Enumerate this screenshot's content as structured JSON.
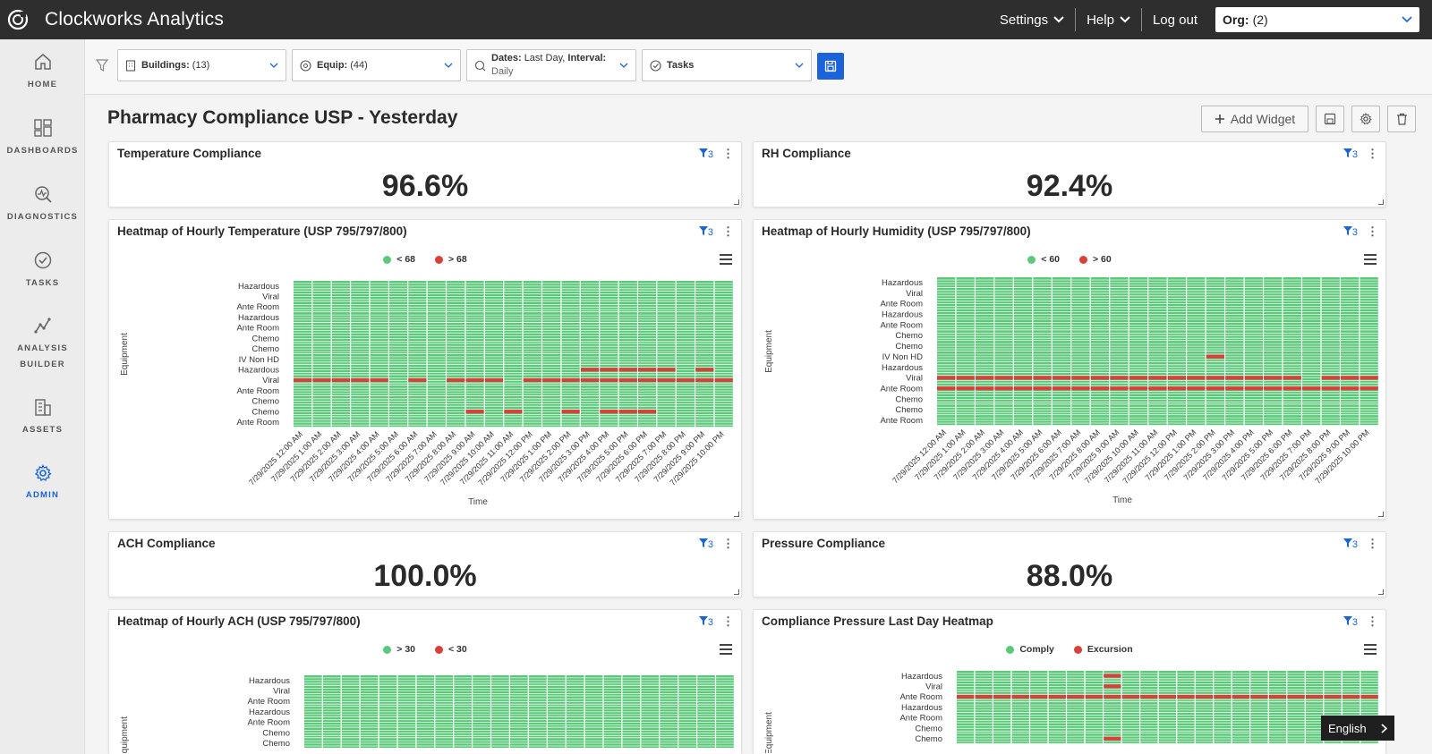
{
  "app": {
    "title": "Clockworks Analytics"
  },
  "topnav": {
    "settings": "Settings",
    "help": "Help",
    "logout": "Log out",
    "org_label": "Org:",
    "org_value": "(2)"
  },
  "sidebar": {
    "items": [
      {
        "label": "HOME",
        "icon": "home-icon"
      },
      {
        "label": "DASHBOARDS",
        "icon": "dashboards-icon"
      },
      {
        "label": "DIAGNOSTICS",
        "icon": "diagnostics-icon"
      },
      {
        "label": "TASKS",
        "icon": "tasks-icon"
      },
      {
        "label": "ANALYSIS BUILDER",
        "icon": "analysis-icon"
      },
      {
        "label": "ASSETS",
        "icon": "assets-icon"
      },
      {
        "label": "ADMIN",
        "icon": "gear-icon",
        "active": true
      }
    ]
  },
  "filters": {
    "buildings_label": "Buildings:",
    "buildings_value": "(13)",
    "equip_label": "Equip:",
    "equip_value": "(44)",
    "dates_label": "Dates:",
    "dates_value": "Last Day,",
    "interval_label": "Interval:",
    "interval_value": "Daily",
    "tasks_label": "Tasks"
  },
  "page": {
    "title": "Pharmacy Compliance USP - Yesterday",
    "add_widget": "Add Widget"
  },
  "widgets": {
    "temp": {
      "title": "Temperature Compliance",
      "value": "96.6%",
      "filter_count": "3"
    },
    "rh": {
      "title": "RH Compliance",
      "value": "92.4%",
      "filter_count": "3"
    },
    "heat_temp": {
      "title": "Heatmap of Hourly Temperature (USP 795/797/800)",
      "filter_count": "3",
      "legend": [
        "< 68",
        "> 68"
      ]
    },
    "heat_hum": {
      "title": "Heatmap of Hourly Humidity (USP 795/797/800)",
      "filter_count": "3",
      "legend": [
        "< 60",
        "> 60"
      ]
    },
    "ach": {
      "title": "ACH Compliance",
      "value": "100.0%",
      "filter_count": "3"
    },
    "pressure": {
      "title": "Pressure Compliance",
      "value": "88.0%",
      "filter_count": "3"
    },
    "heat_ach": {
      "title": "Heatmap of Hourly ACH (USP 795/797/800)",
      "filter_count": "3",
      "legend": [
        "> 30",
        "< 30"
      ]
    },
    "heat_press": {
      "title": "Compliance Pressure Last Day Heatmap",
      "filter_count": "3",
      "legend": [
        "Comply",
        "Excursion"
      ]
    }
  },
  "language": "English",
  "colors": {
    "ok": "#5cc97a",
    "bad": "#d9403a",
    "accent": "#1a63d8"
  },
  "chart_data": [
    {
      "type": "heatmap",
      "title": "Heatmap of Hourly Temperature (USP 795/797/800)",
      "xlabel": "Time",
      "ylabel": "Equipment",
      "legend": [
        "< 68",
        "> 68"
      ],
      "y": [
        "Hazardous",
        "Viral",
        "Ante Room",
        "Hazardous",
        "Ante Room",
        "Chemo",
        "Chemo",
        "IV Non HD",
        "Hazardous",
        "Viral",
        "Ante Room",
        "Chemo",
        "Chemo",
        "Ante Room"
      ],
      "x": [
        "7/29/2025 12:00 AM",
        "7/29/2025 1:00 AM",
        "7/29/2025 2:00 AM",
        "7/29/2025 3:00 AM",
        "7/29/2025 4:00 AM",
        "7/29/2025 5:00 AM",
        "7/29/2025 6:00 AM",
        "7/29/2025 7:00 AM",
        "7/29/2025 8:00 AM",
        "7/29/2025 9:00 AM",
        "7/29/2025 10:00 AM",
        "7/29/2025 11:00 AM",
        "7/29/2025 12:00 PM",
        "7/29/2025 1:00 PM",
        "7/29/2025 2:00 PM",
        "7/29/2025 3:00 PM",
        "7/29/2025 4:00 PM",
        "7/29/2025 5:00 PM",
        "7/29/2025 6:00 PM",
        "7/29/2025 7:00 PM",
        "7/29/2025 8:00 PM",
        "7/29/2025 9:00 PM",
        "7/29/2025 10:00 PM"
      ],
      "excursions": [
        [
          9,
          0
        ],
        [
          9,
          1
        ],
        [
          9,
          2
        ],
        [
          9,
          3
        ],
        [
          9,
          4
        ],
        [
          9,
          6
        ],
        [
          9,
          8
        ],
        [
          9,
          9
        ],
        [
          9,
          10
        ],
        [
          9,
          12
        ],
        [
          9,
          13
        ],
        [
          9,
          14
        ],
        [
          9,
          15
        ],
        [
          9,
          16
        ],
        [
          9,
          17
        ],
        [
          9,
          18
        ],
        [
          9,
          19
        ],
        [
          9,
          20
        ],
        [
          9,
          21
        ],
        [
          9,
          22
        ],
        [
          8,
          15
        ],
        [
          8,
          16
        ],
        [
          8,
          17
        ],
        [
          8,
          18
        ],
        [
          8,
          19
        ],
        [
          8,
          21
        ],
        [
          12,
          9
        ],
        [
          12,
          11
        ],
        [
          12,
          14
        ],
        [
          12,
          16
        ],
        [
          12,
          17
        ],
        [
          12,
          18
        ]
      ]
    },
    {
      "type": "heatmap",
      "title": "Heatmap of Hourly Humidity (USP 795/797/800)",
      "xlabel": "Time",
      "ylabel": "Equipment",
      "legend": [
        "< 60",
        "> 60"
      ],
      "y": [
        "Hazardous",
        "Viral",
        "Ante Room",
        "Hazardous",
        "Ante Room",
        "Chemo",
        "Chemo",
        "IV Non HD",
        "Hazardous",
        "Viral",
        "Ante Room",
        "Chemo",
        "Chemo",
        "Ante Room"
      ],
      "x": [
        "7/29/2025 12:00 AM",
        "7/29/2025 1:00 AM",
        "7/29/2025 2:00 AM",
        "7/29/2025 3:00 AM",
        "7/29/2025 4:00 AM",
        "7/29/2025 5:00 AM",
        "7/29/2025 6:00 AM",
        "7/29/2025 7:00 AM",
        "7/29/2025 8:00 AM",
        "7/29/2025 9:00 AM",
        "7/29/2025 10:00 AM",
        "7/29/2025 11:00 AM",
        "7/29/2025 12:00 PM",
        "7/29/2025 1:00 PM",
        "7/29/2025 2:00 PM",
        "7/29/2025 3:00 PM",
        "7/29/2025 4:00 PM",
        "7/29/2025 5:00 PM",
        "7/29/2025 6:00 PM",
        "7/29/2025 7:00 PM",
        "7/29/2025 8:00 PM",
        "7/29/2025 9:00 PM",
        "7/29/2025 10:00 PM"
      ],
      "excursions": [
        [
          7,
          14
        ],
        [
          9,
          0
        ],
        [
          9,
          1
        ],
        [
          9,
          2
        ],
        [
          9,
          3
        ],
        [
          9,
          4
        ],
        [
          9,
          5
        ],
        [
          9,
          6
        ],
        [
          9,
          7
        ],
        [
          9,
          8
        ],
        [
          9,
          9
        ],
        [
          9,
          10
        ],
        [
          9,
          11
        ],
        [
          9,
          12
        ],
        [
          9,
          13
        ],
        [
          9,
          14
        ],
        [
          9,
          15
        ],
        [
          9,
          16
        ],
        [
          9,
          17
        ],
        [
          9,
          18
        ],
        [
          9,
          20
        ],
        [
          9,
          21
        ],
        [
          9,
          22
        ],
        [
          10,
          0
        ],
        [
          10,
          1
        ],
        [
          10,
          2
        ],
        [
          10,
          3
        ],
        [
          10,
          4
        ],
        [
          10,
          5
        ],
        [
          10,
          6
        ],
        [
          10,
          7
        ],
        [
          10,
          8
        ],
        [
          10,
          9
        ],
        [
          10,
          10
        ],
        [
          10,
          11
        ],
        [
          10,
          12
        ],
        [
          10,
          13
        ],
        [
          10,
          14
        ],
        [
          10,
          15
        ],
        [
          10,
          16
        ],
        [
          10,
          17
        ],
        [
          10,
          18
        ],
        [
          10,
          19
        ],
        [
          10,
          20
        ],
        [
          10,
          21
        ],
        [
          10,
          22
        ]
      ]
    },
    {
      "type": "heatmap",
      "title": "Heatmap of Hourly ACH (USP 795/797/800)",
      "ylabel": "Equipment",
      "legend": [
        "> 30",
        "< 30"
      ],
      "y": [
        "Hazardous",
        "Viral",
        "Ante Room",
        "Hazardous",
        "Ante Room",
        "Chemo",
        "Chemo"
      ],
      "columns": 23,
      "excursions": []
    },
    {
      "type": "heatmap",
      "title": "Compliance Pressure Last Day Heatmap",
      "ylabel": "Equipment",
      "legend": [
        "Comply",
        "Excursion"
      ],
      "y": [
        "Hazardous",
        "Viral",
        "Ante Room",
        "Hazardous",
        "Ante Room",
        "Chemo",
        "Chemo"
      ],
      "columns": 23,
      "excursions": [
        [
          0,
          8
        ],
        [
          1,
          8
        ],
        [
          2,
          0
        ],
        [
          2,
          1
        ],
        [
          2,
          2
        ],
        [
          2,
          3
        ],
        [
          2,
          4
        ],
        [
          2,
          5
        ],
        [
          2,
          6
        ],
        [
          2,
          7
        ],
        [
          2,
          8
        ],
        [
          2,
          9
        ],
        [
          2,
          10
        ],
        [
          2,
          11
        ],
        [
          2,
          12
        ],
        [
          2,
          13
        ],
        [
          2,
          14
        ],
        [
          2,
          15
        ],
        [
          2,
          16
        ],
        [
          2,
          17
        ],
        [
          2,
          18
        ],
        [
          2,
          19
        ],
        [
          2,
          20
        ],
        [
          2,
          21
        ],
        [
          2,
          22
        ],
        [
          6,
          8
        ]
      ]
    }
  ]
}
